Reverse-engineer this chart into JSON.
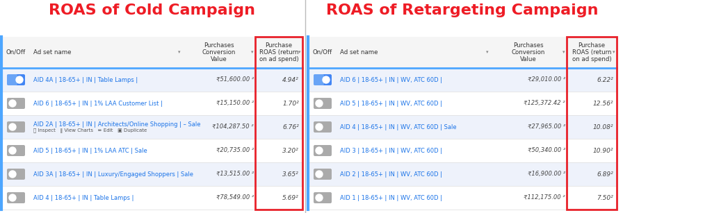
{
  "left_title": "ROAS of Cold Campaign",
  "right_title": "ROAS of Retargeting Campaign",
  "title_color": "#ee1c25",
  "title_fontsize": 16,
  "cold_rows": [
    {
      "toggle": true,
      "name": "AID 4A | 18-65+ | IN | Table Lamps |",
      "sub": null,
      "conv_value": "₹51,600.00 ²",
      "roas": "4.94²"
    },
    {
      "toggle": false,
      "name": "AID 6 | 18-65+ | IN | 1% LAA Customer List |",
      "sub": null,
      "conv_value": "₹15,150.00 ²",
      "roas": "1.70²"
    },
    {
      "toggle": false,
      "name": "AID 2A | 18-65+ | IN | Architects/Online Shopping | – Sale",
      "sub": "ⓠ Inspect   ‖ View Charts   ✏ Edit   ▣ Duplicate",
      "conv_value": "₹104,287.50 ²",
      "roas": "6.76²"
    },
    {
      "toggle": false,
      "name": "AID 5 | 18-65+ | IN | 1% LAA ATC | Sale",
      "sub": null,
      "conv_value": "₹20,735.00 ²",
      "roas": "3.20²"
    },
    {
      "toggle": false,
      "name": "AID 3A | 18-65+ | IN | Luxury/Engaged Shoppers | Sale",
      "sub": null,
      "conv_value": "₹13,515.00 ²",
      "roas": "3.65²"
    },
    {
      "toggle": false,
      "name": "AID 4 | 18-65+ | IN | Table Lamps |",
      "sub": null,
      "conv_value": "₹78,549.00 ²",
      "roas": "5.69²"
    }
  ],
  "retarget_rows": [
    {
      "toggle": true,
      "name": "AID 6 | 18-65+ | IN | WV, ATC 60D |",
      "sub": null,
      "conv_value": "₹29,010.00 ²",
      "roas": "6.22²"
    },
    {
      "toggle": false,
      "name": "AID 5 | 18-65+ | IN | WV, ATC 60D |",
      "sub": null,
      "conv_value": "₹125,372.42 ²",
      "roas": "12.56²"
    },
    {
      "toggle": false,
      "name": "AID 4 | 18-65+ | IN | WV, ATC 60D | Sale",
      "sub": null,
      "conv_value": "₹27,965.00 ²",
      "roas": "10.08²"
    },
    {
      "toggle": false,
      "name": "AID 3 | 18-65+ | IN | WV, ATC 60D |",
      "sub": null,
      "conv_value": "₹50,340.00 ²",
      "roas": "10.90²"
    },
    {
      "toggle": false,
      "name": "AID 2 | 18-65+ | IN | WV, ATC 60D |",
      "sub": null,
      "conv_value": "₹16,900.00 ²",
      "roas": "6.89²"
    },
    {
      "toggle": false,
      "name": "AID 1 | 18-65+ | IN | WV, ATC 60D |",
      "sub": null,
      "conv_value": "₹112,175.00 ²",
      "roas": "7.50²"
    }
  ],
  "bg_color": "#ffffff",
  "row_bg_alt": "#eef2fb",
  "row_bg_norm": "#ffffff",
  "header_bg": "#f5f5f5",
  "link_color": "#1a73e8",
  "text_color": "#444444",
  "sub_text_color": "#555555",
  "header_text_color": "#333333",
  "roas_box_color": "#e8212a",
  "divider_color": "#4da6ff",
  "toggle_on_color": "#4285f4",
  "toggle_off_color": "#aaaaaa",
  "separator_color": "#dddddd",
  "left_border_color": "#4da6ff"
}
